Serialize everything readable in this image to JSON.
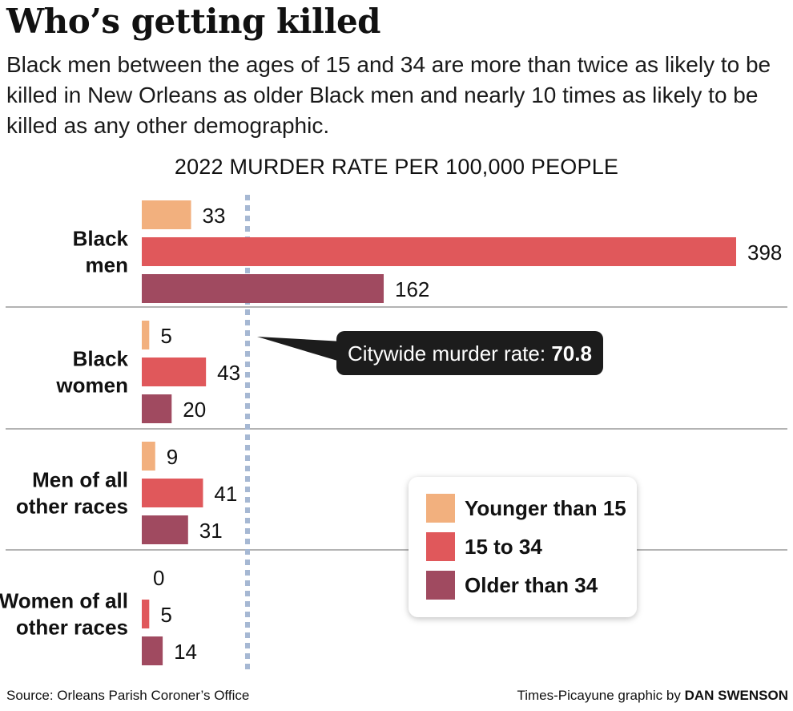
{
  "title": "Who’s getting killed",
  "subtitle": "Black men between the ages of 15 and 34 are more than twice as likely to be killed in New Orleans as older Black men and nearly 10 times as likely to be killed as any other demographic.",
  "footer": {
    "source": "Source: Orleans Parish Coroner’s Office",
    "credit_prefix": "Times-Picayune graphic by",
    "credit_author": "DAN SWENSON"
  },
  "colors": {
    "younger": "#f2b07e",
    "mid": "#e0585b",
    "older": "#a04a60",
    "reference_line": "#a6b8d3",
    "divider": "#9a9a9a",
    "callout_bg": "#1c1c1c",
    "callout_text": "#ffffff"
  },
  "chart_data": {
    "type": "bar",
    "orientation": "horizontal",
    "title": "2022 MURDER RATE PER 100,000 PEOPLE",
    "categories": [
      [
        "Black",
        "men"
      ],
      [
        "Black",
        "women"
      ],
      [
        "Men of all",
        "other races"
      ],
      [
        "Women of all",
        "other races"
      ]
    ],
    "series": [
      {
        "name": "Younger than 15",
        "values": [
          33,
          5,
          9,
          0
        ]
      },
      {
        "name": "15 to 34",
        "values": [
          398,
          43,
          41,
          5
        ]
      },
      {
        "name": "Older than 34",
        "values": [
          162,
          20,
          31,
          14
        ]
      }
    ],
    "reference_line": {
      "value": 70.8,
      "label": "Citywide murder rate:",
      "value_label": "70.8"
    },
    "xlim": [
      0,
      400
    ],
    "grid": false,
    "legend_position": "lower-right"
  }
}
